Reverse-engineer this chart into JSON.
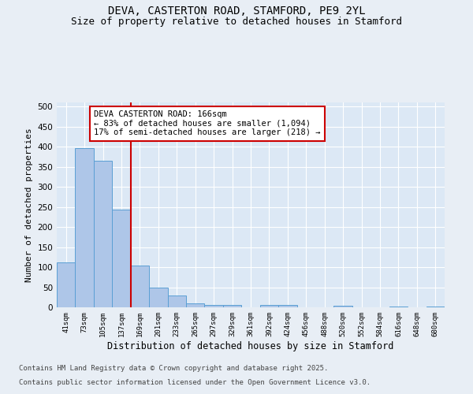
{
  "title_line1": "DEVA, CASTERTON ROAD, STAMFORD, PE9 2YL",
  "title_line2": "Size of property relative to detached houses in Stamford",
  "xlabel": "Distribution of detached houses by size in Stamford",
  "ylabel": "Number of detached properties",
  "categories": [
    "41sqm",
    "73sqm",
    "105sqm",
    "137sqm",
    "169sqm",
    "201sqm",
    "233sqm",
    "265sqm",
    "297sqm",
    "329sqm",
    "361sqm",
    "392sqm",
    "424sqm",
    "456sqm",
    "488sqm",
    "520sqm",
    "552sqm",
    "584sqm",
    "616sqm",
    "648sqm",
    "680sqm"
  ],
  "values": [
    112,
    397,
    365,
    243,
    104,
    50,
    30,
    10,
    6,
    5,
    0,
    6,
    6,
    0,
    0,
    3,
    0,
    0,
    2,
    0,
    2
  ],
  "bar_color": "#aec6e8",
  "bar_edge_color": "#5a9fd4",
  "vline_x_idx": 4,
  "vline_color": "#cc0000",
  "annotation_text": "DEVA CASTERTON ROAD: 166sqm\n← 83% of detached houses are smaller (1,094)\n17% of semi-detached houses are larger (218) →",
  "annotation_box_color": "#ffffff",
  "annotation_box_edge_color": "#cc0000",
  "ylim": [
    0,
    510
  ],
  "yticks": [
    0,
    50,
    100,
    150,
    200,
    250,
    300,
    350,
    400,
    450,
    500
  ],
  "bg_color": "#e8eef5",
  "plot_bg_color": "#dce8f5",
  "footer_line1": "Contains HM Land Registry data © Crown copyright and database right 2025.",
  "footer_line2": "Contains public sector information licensed under the Open Government Licence v3.0.",
  "title_fontsize": 10,
  "subtitle_fontsize": 9,
  "annotation_fontsize": 7.5,
  "footer_fontsize": 6.5,
  "ylabel_fontsize": 8,
  "xlabel_fontsize": 8.5
}
